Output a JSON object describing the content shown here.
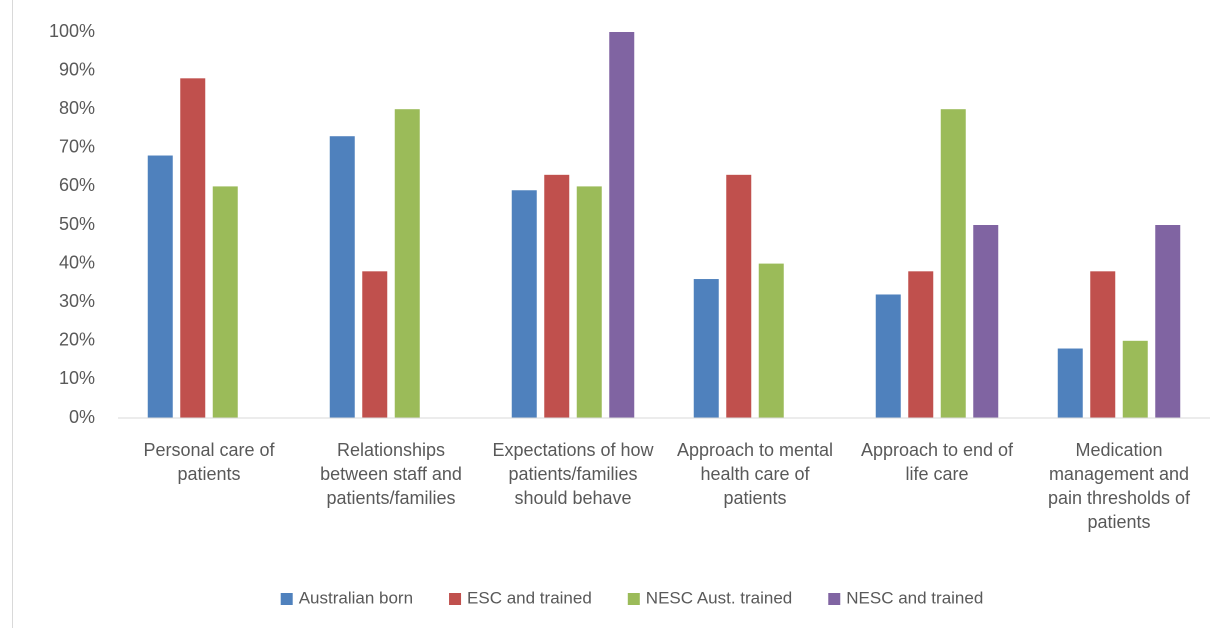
{
  "chart_data": {
    "type": "bar",
    "categories": [
      "Personal care of patients",
      "Relationships between staff and patients/families",
      "Expectations of how patients/families should behave",
      "Approach to mental health care of patients",
      "Approach to end of life care",
      "Medication management and pain thresholds of patients"
    ],
    "series": [
      {
        "name": "Australian born",
        "color": "#4f81bd",
        "values": [
          68,
          73,
          59,
          36,
          32,
          18
        ]
      },
      {
        "name": "ESC and trained",
        "color": "#c0504d",
        "values": [
          88,
          38,
          63,
          63,
          38,
          38
        ]
      },
      {
        "name": "NESC Aust. trained",
        "color": "#9bbb59",
        "values": [
          60,
          80,
          60,
          40,
          80,
          20
        ]
      },
      {
        "name": "NESC and trained",
        "color": "#8064a2",
        "values": [
          0,
          0,
          100,
          0,
          50,
          50
        ]
      }
    ],
    "ylim": [
      0,
      100
    ],
    "yticks": [
      {
        "value": 0,
        "label": "0%"
      },
      {
        "value": 10,
        "label": "10%"
      },
      {
        "value": 20,
        "label": "20%"
      },
      {
        "value": 30,
        "label": "30%"
      },
      {
        "value": 40,
        "label": "40%"
      },
      {
        "value": 50,
        "label": "50%"
      },
      {
        "value": 60,
        "label": "60%"
      },
      {
        "value": 70,
        "label": "70%"
      },
      {
        "value": 80,
        "label": "80%"
      },
      {
        "value": 90,
        "label": "90%"
      },
      {
        "value": 100,
        "label": "100%"
      }
    ],
    "grid": false,
    "legend": "bottom"
  }
}
